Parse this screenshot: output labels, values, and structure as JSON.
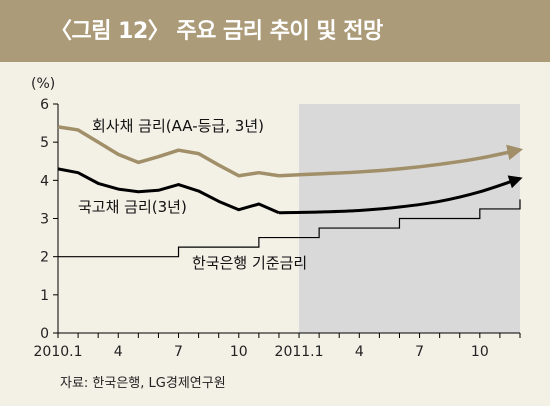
{
  "figure": {
    "title": "〈그림 12〉 주요 금리 추이 및 전망",
    "source": "자료: 한국은행, LG경제연구원"
  },
  "colors": {
    "title_bar": "#ab9b78",
    "background": "#f3f0e6",
    "forecast_shade": "#d9d9d9",
    "corporate_bond": "#a18f69",
    "treasury_bond": "#000000",
    "base_rate": "#000000"
  },
  "chart_data": {
    "type": "line",
    "ylabel": "(%)",
    "ylim": [
      0,
      6
    ],
    "yticks": [
      0,
      1,
      2,
      3,
      4,
      5,
      6
    ],
    "xlabels": [
      "2010.1",
      "4",
      "7",
      "10",
      "2011.1",
      "4",
      "7",
      "10"
    ],
    "xlabel_months": [
      1,
      4,
      7,
      10,
      13,
      16,
      19,
      22
    ],
    "xlim": [
      1,
      24
    ],
    "forecast_start_month": 13,
    "series": [
      {
        "name": "회사채 금리(AA-등급, 3년)",
        "color": "#a18f69",
        "months": [
          1,
          2,
          3,
          4,
          5,
          6,
          7,
          8,
          9,
          10,
          11,
          12
        ],
        "values": [
          5.4,
          5.32,
          5.0,
          4.68,
          4.47,
          4.62,
          4.79,
          4.7,
          4.4,
          4.12,
          4.2,
          4.12
        ],
        "forecast_months": [
          12,
          14,
          16,
          18,
          20,
          22,
          24
        ],
        "forecast_values": [
          4.12,
          4.17,
          4.22,
          4.3,
          4.42,
          4.58,
          4.8
        ]
      },
      {
        "name": "국고채 금리(3년)",
        "color": "#000000",
        "months": [
          1,
          2,
          3,
          4,
          5,
          6,
          7,
          8,
          9,
          10,
          11,
          12
        ],
        "values": [
          4.3,
          4.2,
          3.92,
          3.77,
          3.7,
          3.74,
          3.89,
          3.72,
          3.45,
          3.23,
          3.38,
          3.15
        ],
        "forecast_months": [
          12,
          14,
          16,
          18,
          20,
          22,
          24
        ],
        "forecast_values": [
          3.15,
          3.17,
          3.21,
          3.3,
          3.45,
          3.7,
          4.05
        ]
      },
      {
        "name": "한국은행 기준금리",
        "color": "#000000",
        "step": true,
        "months": [
          1,
          7,
          9,
          11,
          14,
          18,
          22,
          24
        ],
        "values": [
          2.0,
          2.25,
          2.25,
          2.5,
          2.75,
          3.0,
          3.25,
          3.5
        ]
      }
    ]
  }
}
